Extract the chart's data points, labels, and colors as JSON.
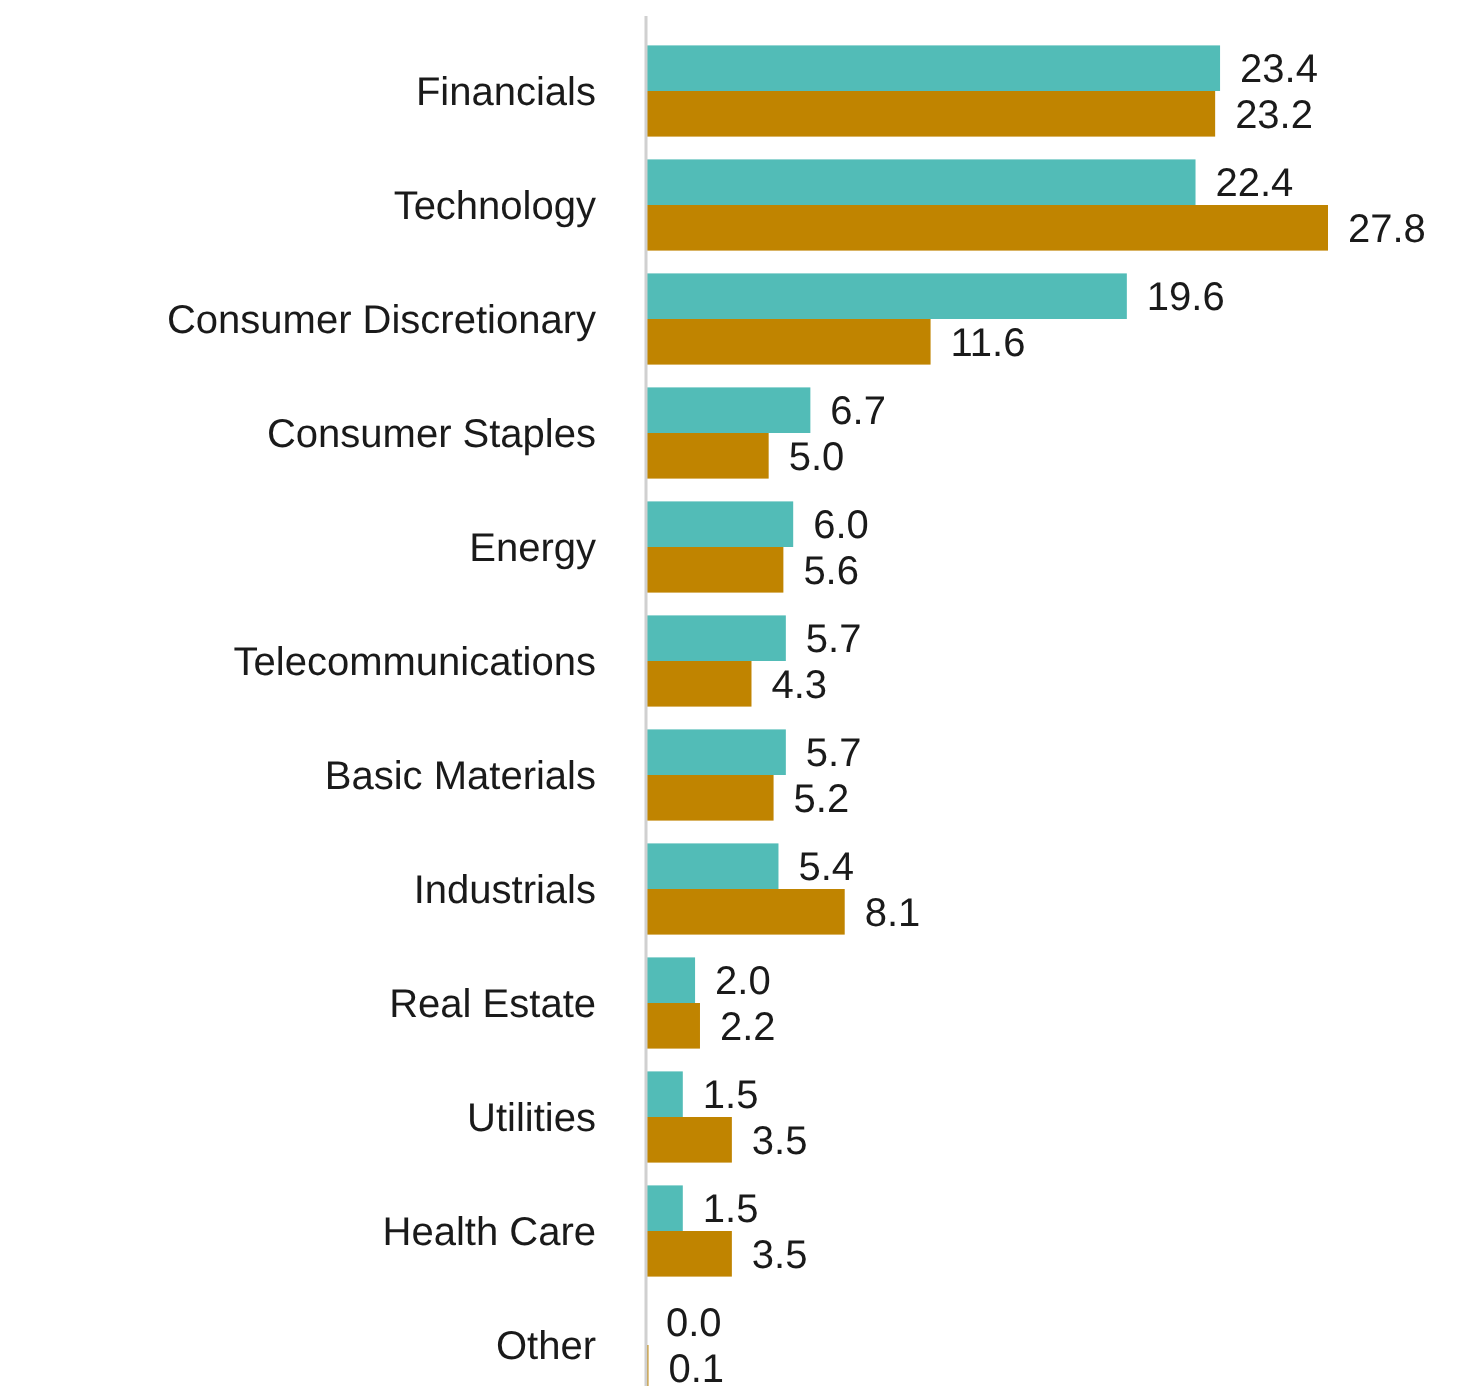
{
  "chart_data": {
    "type": "bar",
    "orientation": "horizontal",
    "categories": [
      "Financials",
      "Technology",
      "Consumer Discretionary",
      "Consumer Staples",
      "Energy",
      "Telecommunications",
      "Basic Materials",
      "Industrials",
      "Real Estate",
      "Utilities",
      "Health Care",
      "Other"
    ],
    "series": [
      {
        "color": "#52bcb7",
        "values": [
          23.4,
          22.4,
          19.6,
          6.7,
          6.0,
          5.7,
          5.7,
          5.4,
          2.0,
          1.5,
          1.5,
          0.0
        ],
        "value_labels": [
          "23.4",
          "22.4",
          "19.6",
          "6.7",
          "6.0",
          "5.7",
          "5.7",
          "5.4",
          "2.0",
          "1.5",
          "1.5",
          "0.0"
        ]
      },
      {
        "color": "#c08400",
        "values": [
          23.2,
          27.8,
          11.6,
          5.0,
          5.6,
          4.3,
          5.2,
          8.1,
          2.2,
          3.5,
          3.5,
          0.1
        ],
        "value_labels": [
          "23.2",
          "27.8",
          "11.6",
          "5.0",
          "5.6",
          "4.3",
          "5.2",
          "8.1",
          "2.2",
          "3.5",
          "3.5",
          "0.1"
        ]
      }
    ],
    "tick_labels": "y"
  }
}
